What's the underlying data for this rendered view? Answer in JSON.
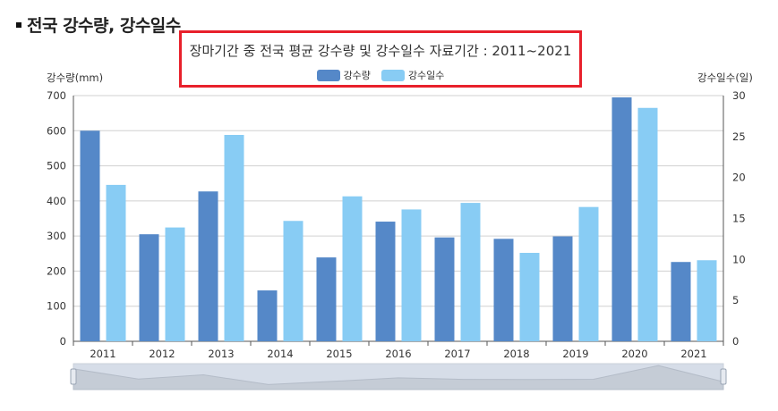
{
  "section": {
    "title": "전국 강수량, 강수일수"
  },
  "chart_data": {
    "type": "bar",
    "title": "장마기간 중 전국 평균 강수량 및 강수일수 자료기간 : 2011~2021",
    "ylabel": "강수량(mm)",
    "y2label": "강수일수(일)",
    "categories": [
      "2011",
      "2012",
      "2013",
      "2014",
      "2015",
      "2016",
      "2017",
      "2018",
      "2019",
      "2020",
      "2021"
    ],
    "series": [
      {
        "name": "강수량",
        "axis": "left",
        "color": "#5588c8",
        "values": [
          600,
          305,
          427,
          145,
          239,
          341,
          296,
          292,
          299,
          695,
          226
        ]
      },
      {
        "name": "강수일수",
        "axis": "right",
        "color": "#88ccf4",
        "values": [
          19.1,
          13.9,
          25.2,
          14.7,
          17.7,
          16.1,
          16.9,
          10.8,
          16.4,
          28.5,
          9.9
        ]
      }
    ],
    "ylim": [
      0,
      700
    ],
    "y2lim": [
      0,
      30
    ],
    "yticks": [
      0,
      100,
      200,
      300,
      400,
      500,
      600,
      700
    ],
    "y2ticks": [
      0,
      5,
      10,
      15,
      20,
      25,
      30
    ],
    "grid": true,
    "legend": "top-center",
    "highlight_color": "#e8202b"
  }
}
